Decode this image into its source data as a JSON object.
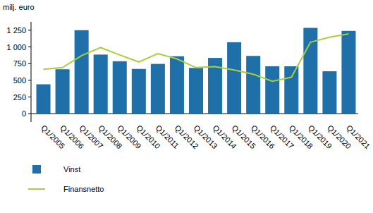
{
  "chart_data": {
    "type": "bar",
    "y_label": "milj. euro",
    "categories": [
      "Q1/2005",
      "Q1/2006",
      "Q1/2007",
      "Q1/2008",
      "Q1/2009",
      "Q1/2010",
      "Q1/2011",
      "Q1/2012",
      "Q1/2013",
      "Q1/2014",
      "Q1/2015",
      "Q1/2016",
      "Q1/2017",
      "Q1/2018",
      "Q1/2019",
      "Q1/2020",
      "Q1/2021"
    ],
    "series": [
      {
        "name": "Vinst",
        "type": "bar",
        "color": "#1f6fa8",
        "values": [
          440,
          665,
          1250,
          885,
          785,
          670,
          745,
          860,
          685,
          835,
          1070,
          865,
          710,
          710,
          1285,
          635,
          1240
        ]
      },
      {
        "name": "Finansnetto",
        "type": "line",
        "color": "#aacd3f",
        "values": [
          665,
          690,
          870,
          990,
          880,
          775,
          900,
          820,
          690,
          705,
          655,
          590,
          485,
          545,
          1070,
          1145,
          1195
        ]
      }
    ],
    "ylim": [
      -125,
      1375
    ],
    "yticks": [
      0,
      250,
      500,
      750,
      {
        "value": 1000,
        "label": "1 000"
      },
      {
        "value": 1250,
        "label": "1 250"
      }
    ],
    "grid": false,
    "legend": "bottom-left"
  }
}
